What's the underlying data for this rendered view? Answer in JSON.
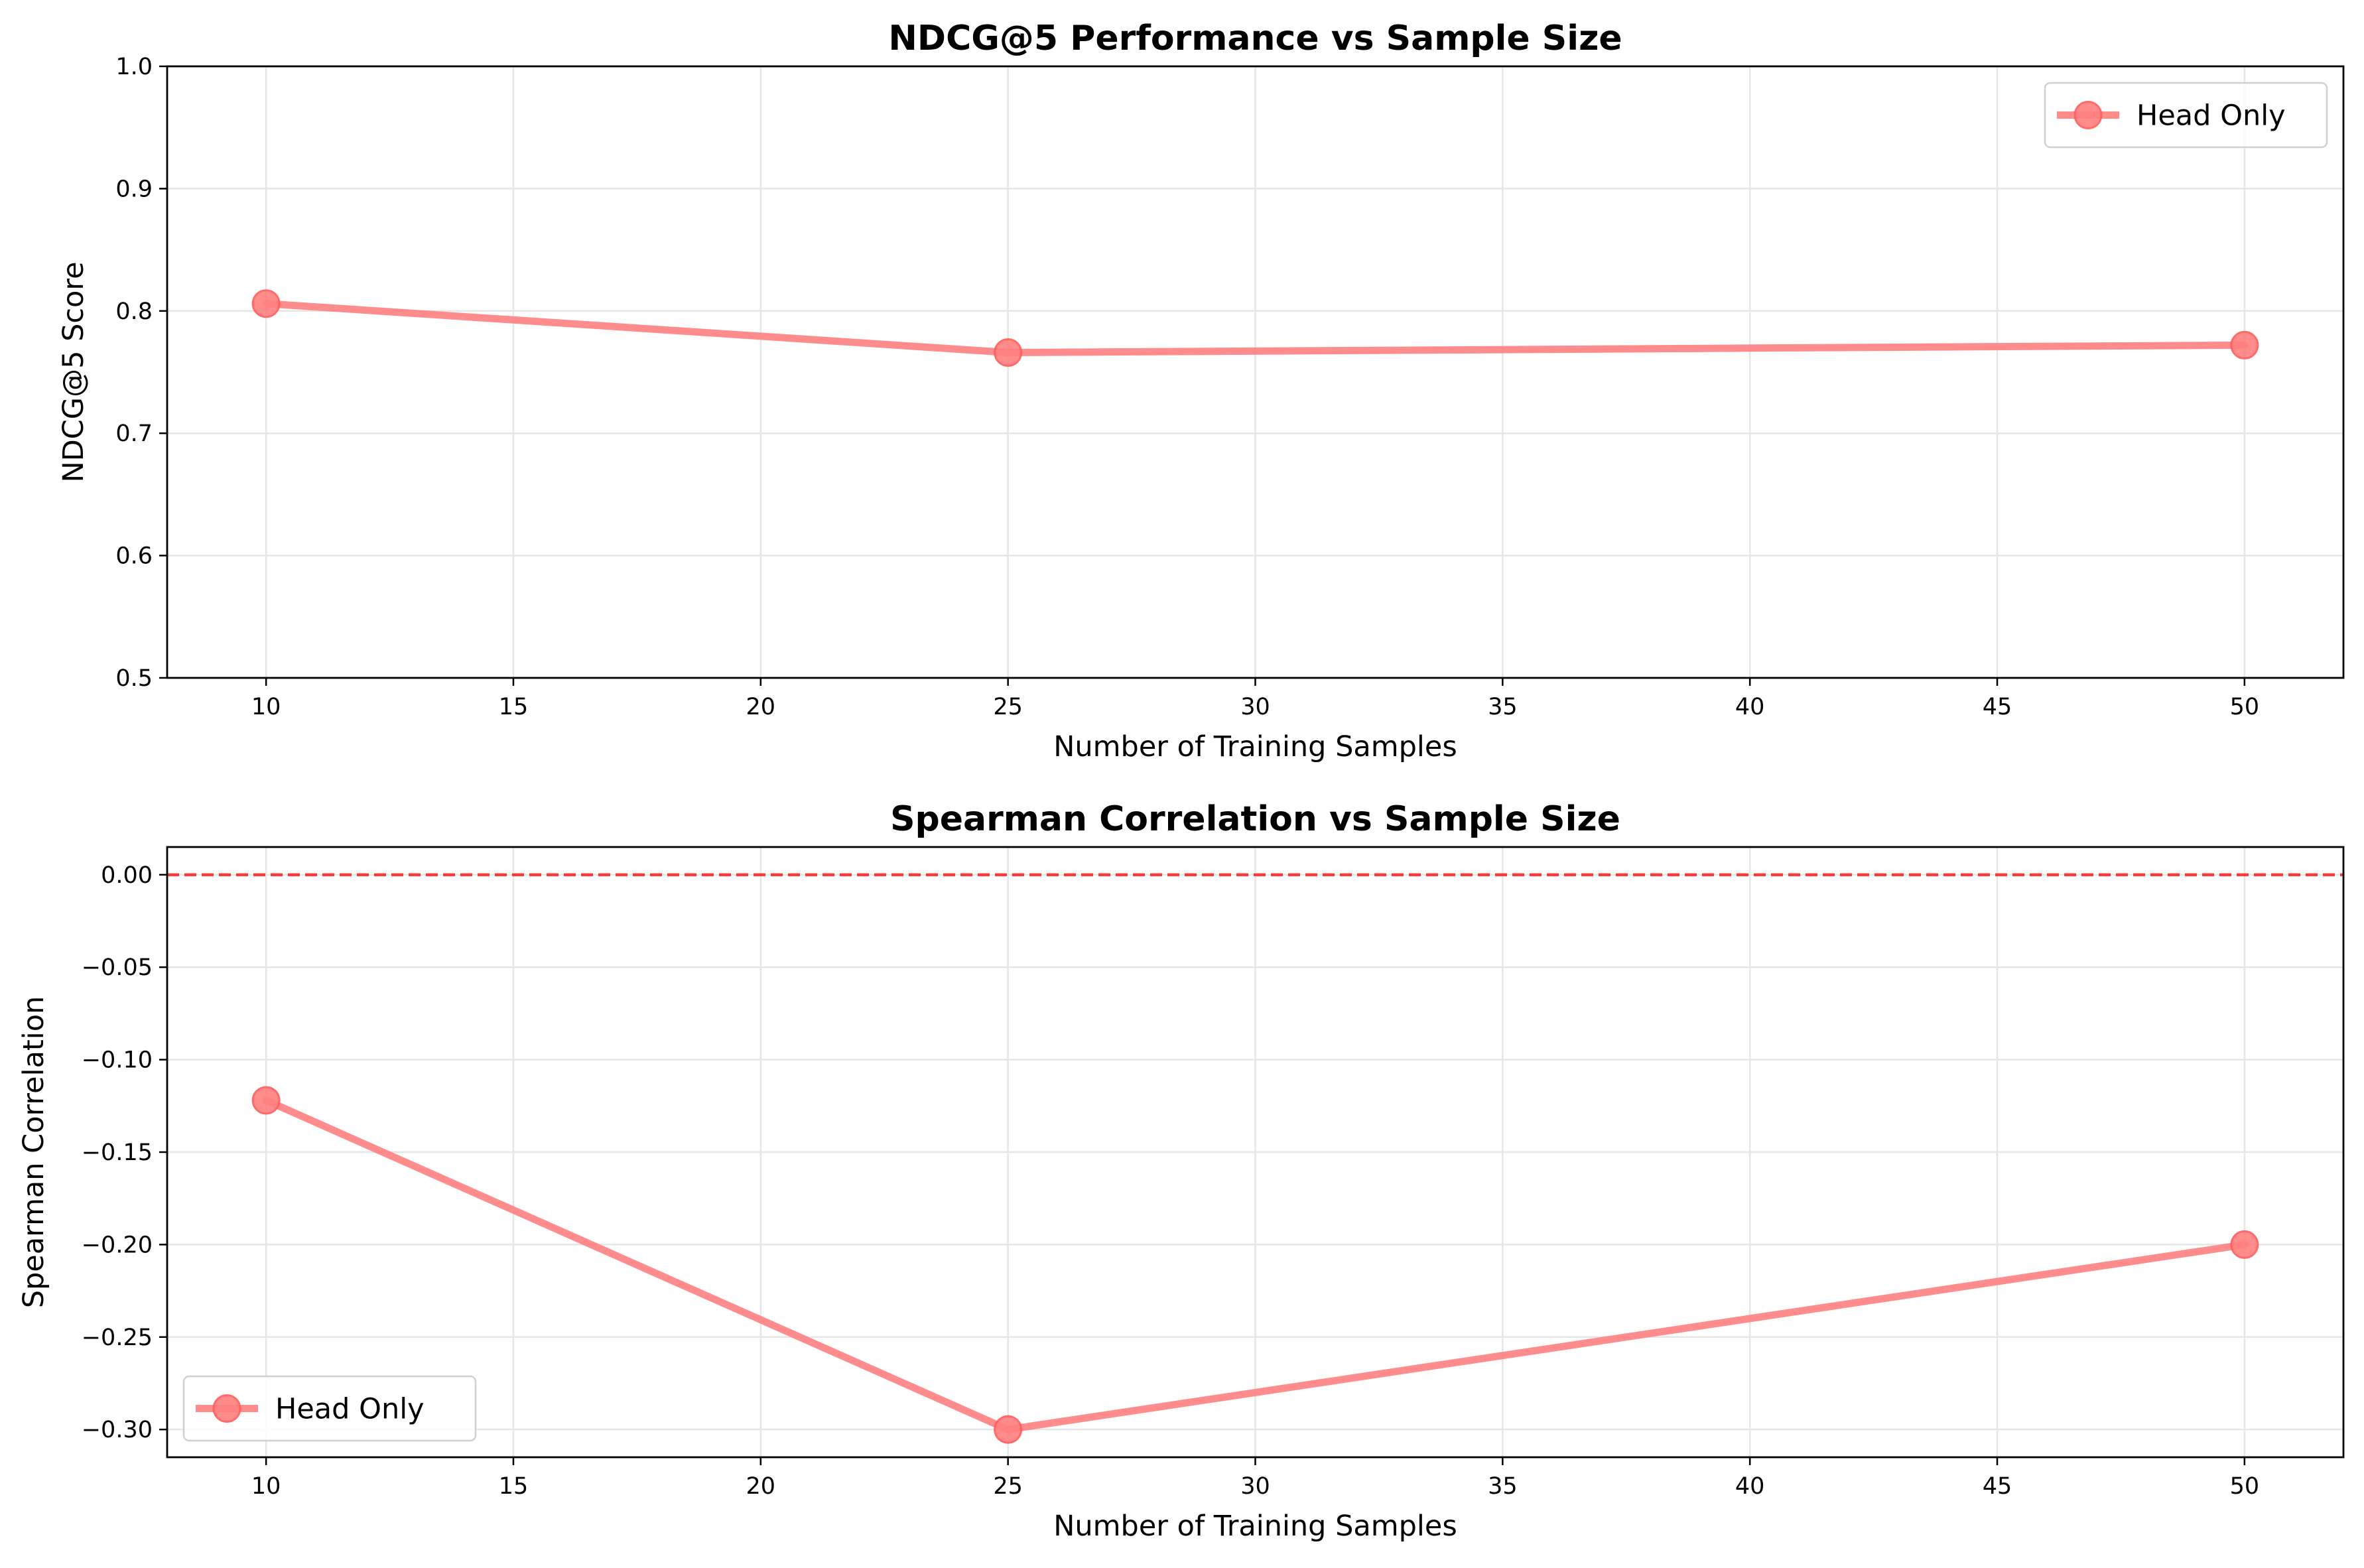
{
  "chart_data": [
    {
      "type": "line",
      "title": "NDCG@5 Performance vs Sample Size",
      "xlabel": "Number of Training Samples",
      "ylabel": "NDCG@5 Score",
      "xlim": [
        8,
        52
      ],
      "ylim": [
        0.5,
        1.0
      ],
      "xticks": [
        10,
        15,
        20,
        25,
        30,
        35,
        40,
        45,
        50
      ],
      "yticks": [
        0.5,
        0.6,
        0.7,
        0.8,
        0.9,
        1.0
      ],
      "xtick_labels": [
        "10",
        "15",
        "20",
        "25",
        "30",
        "35",
        "40",
        "45",
        "50"
      ],
      "ytick_labels": [
        "0.5",
        "0.6",
        "0.7",
        "0.8",
        "0.9",
        "1.0"
      ],
      "grid": true,
      "legend": "top-right",
      "series": [
        {
          "name": "Head Only",
          "x": [
            10,
            25,
            50
          ],
          "y": [
            0.806,
            0.766,
            0.772
          ],
          "color": "#ff7f7f",
          "marker": "circle"
        }
      ]
    },
    {
      "type": "line",
      "title": "Spearman Correlation vs Sample Size",
      "xlabel": "Number of Training Samples",
      "ylabel": "Spearman Correlation",
      "xlim": [
        8,
        52
      ],
      "ylim": [
        -0.315,
        0.015
      ],
      "xticks": [
        10,
        15,
        20,
        25,
        30,
        35,
        40,
        45,
        50
      ],
      "yticks": [
        0.0,
        -0.05,
        -0.1,
        -0.15,
        -0.2,
        -0.25,
        -0.3
      ],
      "xtick_labels": [
        "10",
        "15",
        "20",
        "25",
        "30",
        "35",
        "40",
        "45",
        "50"
      ],
      "ytick_labels": [
        "0.00",
        "−0.05",
        "−0.10",
        "−0.15",
        "−0.20",
        "−0.25",
        "−0.30"
      ],
      "grid": true,
      "legend": "bottom-left",
      "reference_line": {
        "y": 0.0,
        "style": "dashed",
        "color": "#ff0000"
      },
      "series": [
        {
          "name": "Head Only",
          "x": [
            10,
            25,
            50
          ],
          "y": [
            -0.122,
            -0.3,
            -0.2
          ],
          "color": "#ff7f7f",
          "marker": "circle"
        }
      ]
    }
  ]
}
